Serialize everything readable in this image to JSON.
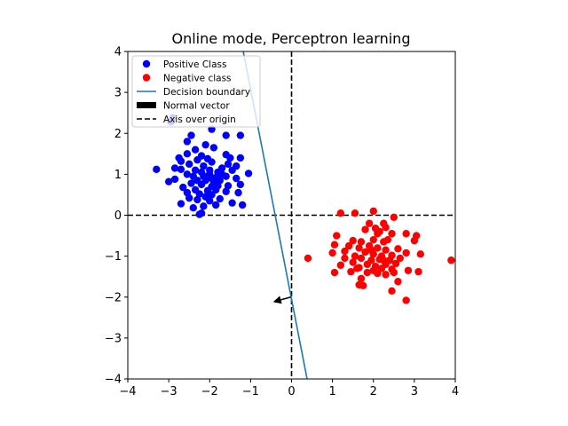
{
  "chart_data": {
    "type": "scatter",
    "title": "Online mode, Perceptron learning",
    "xlabel": "",
    "ylabel": "",
    "xlim": [
      -4,
      4
    ],
    "ylim": [
      -4,
      4
    ],
    "xticks": [
      "−4",
      "−3",
      "−2",
      "−1",
      "0",
      "1",
      "2",
      "3",
      "4"
    ],
    "yticks": [
      "−4",
      "−3",
      "−2",
      "−1",
      "0",
      "1",
      "2",
      "3",
      "4"
    ],
    "grid": false,
    "legend_position": "top-left",
    "series": [
      {
        "name": "Positive Class",
        "kind": "points",
        "color": "#0000ff",
        "points": [
          [
            -2.95,
            2.28
          ],
          [
            -2.9,
            2.38
          ],
          [
            -1.95,
            2.1
          ],
          [
            -2.45,
            1.95
          ],
          [
            -1.6,
            1.95
          ],
          [
            -1.25,
            1.95
          ],
          [
            -2.55,
            1.8
          ],
          [
            -2.1,
            1.72
          ],
          [
            -1.9,
            1.65
          ],
          [
            -2.35,
            1.6
          ],
          [
            -2.55,
            1.5
          ],
          [
            -2.2,
            1.45
          ],
          [
            -1.6,
            1.48
          ],
          [
            -1.5,
            1.4
          ],
          [
            -1.25,
            1.4
          ],
          [
            -2.75,
            1.4
          ],
          [
            -2.7,
            1.32
          ],
          [
            -2.3,
            1.35
          ],
          [
            -2.05,
            1.38
          ],
          [
            -1.95,
            1.3
          ],
          [
            -1.55,
            1.25
          ],
          [
            -2.5,
            1.25
          ],
          [
            -2.15,
            1.2
          ],
          [
            -1.35,
            1.2
          ],
          [
            -1.7,
            1.15
          ],
          [
            -2.85,
            1.15
          ],
          [
            -2.7,
            1.12
          ],
          [
            -2.35,
            1.1
          ],
          [
            -2.0,
            1.1
          ],
          [
            -1.45,
            1.1
          ],
          [
            -3.3,
            1.12
          ],
          [
            -2.2,
            1.05
          ],
          [
            -1.8,
            1.05
          ],
          [
            -1.05,
            1.02
          ],
          [
            -2.55,
            1.0
          ],
          [
            -2.4,
            0.95
          ],
          [
            -2.05,
            0.95
          ],
          [
            -1.85,
            0.92
          ],
          [
            -1.6,
            0.95
          ],
          [
            -1.35,
            0.9
          ],
          [
            -2.85,
            0.88
          ],
          [
            -2.3,
            0.85
          ],
          [
            -2.1,
            0.85
          ],
          [
            -1.9,
            0.8
          ],
          [
            -1.75,
            0.85
          ],
          [
            -3.0,
            0.82
          ],
          [
            -2.45,
            0.78
          ],
          [
            -2.2,
            0.75
          ],
          [
            -1.95,
            0.7
          ],
          [
            -1.8,
            0.72
          ],
          [
            -1.55,
            0.72
          ],
          [
            -1.25,
            0.75
          ],
          [
            -2.65,
            0.68
          ],
          [
            -2.35,
            0.62
          ],
          [
            -2.05,
            0.6
          ],
          [
            -1.85,
            0.62
          ],
          [
            -1.6,
            0.58
          ],
          [
            -2.55,
            0.55
          ],
          [
            -2.25,
            0.52
          ],
          [
            -1.95,
            0.5
          ],
          [
            -1.3,
            0.55
          ],
          [
            -2.1,
            0.45
          ],
          [
            -2.3,
            0.38
          ],
          [
            -1.75,
            0.4
          ],
          [
            -2.5,
            0.42
          ],
          [
            -2.0,
            0.35
          ],
          [
            -1.45,
            0.3
          ],
          [
            -2.7,
            0.28
          ],
          [
            -2.15,
            0.22
          ],
          [
            -1.85,
            0.25
          ],
          [
            -2.4,
            0.18
          ],
          [
            -1.2,
            0.25
          ],
          [
            -2.2,
            0.05
          ],
          [
            -2.25,
            0.02
          ],
          [
            -1.95,
            0.9
          ],
          [
            -2.0,
            1.0
          ],
          [
            -1.7,
            1.0
          ],
          [
            -2.15,
            0.95
          ]
        ]
      },
      {
        "name": "Negative class",
        "kind": "points",
        "color": "#ff0000",
        "points": [
          [
            2.0,
            0.1
          ],
          [
            1.2,
            0.05
          ],
          [
            1.55,
            0.05
          ],
          [
            2.5,
            -0.05
          ],
          [
            2.25,
            -0.2
          ],
          [
            1.9,
            -0.2
          ],
          [
            2.3,
            -0.3
          ],
          [
            2.05,
            -0.32
          ],
          [
            1.8,
            -0.35
          ],
          [
            2.15,
            -0.4
          ],
          [
            2.45,
            -0.45
          ],
          [
            2.8,
            -0.45
          ],
          [
            3.05,
            -0.5
          ],
          [
            1.1,
            -0.5
          ],
          [
            1.5,
            -0.62
          ],
          [
            1.7,
            -0.65
          ],
          [
            2.0,
            -0.6
          ],
          [
            2.25,
            -0.65
          ],
          [
            3.0,
            -0.62
          ],
          [
            1.05,
            -0.72
          ],
          [
            1.4,
            -0.75
          ],
          [
            1.65,
            -0.8
          ],
          [
            1.9,
            -0.75
          ],
          [
            2.1,
            -0.8
          ],
          [
            2.3,
            -0.85
          ],
          [
            2.6,
            -0.82
          ],
          [
            1.3,
            -0.88
          ],
          [
            1.8,
            -0.9
          ],
          [
            1.0,
            -0.92
          ],
          [
            2.8,
            -0.92
          ],
          [
            3.15,
            -0.95
          ],
          [
            1.55,
            -1.0
          ],
          [
            2.0,
            -0.95
          ],
          [
            2.2,
            -1.0
          ],
          [
            2.45,
            -0.98
          ],
          [
            0.4,
            -1.05
          ],
          [
            3.9,
            -1.1
          ],
          [
            1.3,
            -1.05
          ],
          [
            1.7,
            -1.05
          ],
          [
            1.95,
            -1.1
          ],
          [
            2.15,
            -1.08
          ],
          [
            2.4,
            -1.1
          ],
          [
            2.65,
            -1.05
          ],
          [
            1.5,
            -1.15
          ],
          [
            1.85,
            -1.2
          ],
          [
            2.3,
            -1.2
          ],
          [
            2.55,
            -1.18
          ],
          [
            1.2,
            -1.22
          ],
          [
            2.05,
            -1.25
          ],
          [
            1.65,
            -1.28
          ],
          [
            2.2,
            -1.3
          ],
          [
            2.45,
            -1.32
          ],
          [
            1.05,
            -1.4
          ],
          [
            1.45,
            -1.38
          ],
          [
            1.85,
            -1.4
          ],
          [
            2.1,
            -1.42
          ],
          [
            2.3,
            -1.45
          ],
          [
            2.85,
            -1.35
          ],
          [
            3.1,
            -1.38
          ],
          [
            1.7,
            -1.55
          ],
          [
            2.6,
            -1.62
          ],
          [
            1.65,
            -1.7
          ],
          [
            1.75,
            -1.72
          ],
          [
            2.45,
            -1.85
          ],
          [
            2.8,
            -2.08
          ],
          [
            2.0,
            -1.35
          ],
          [
            2.25,
            -1.1
          ],
          [
            1.95,
            -0.85
          ],
          [
            2.35,
            -0.6
          ],
          [
            1.6,
            -1.3
          ],
          [
            2.1,
            -0.45
          ],
          [
            2.5,
            -1.4
          ]
        ]
      },
      {
        "name": "Decision boundary",
        "kind": "line",
        "color": "#1f77b4",
        "points": [
          [
            -1.18,
            4.0
          ],
          [
            0.38,
            -4.0
          ]
        ]
      },
      {
        "name": "Normal vector",
        "kind": "arrow",
        "color": "#000000",
        "points": [
          [
            -0.02,
            -2.0
          ],
          [
            -0.45,
            -2.12
          ]
        ]
      },
      {
        "name": "Axis over origin",
        "kind": "axes-dashed",
        "color": "#000000",
        "points": [
          [
            0,
            0
          ]
        ]
      }
    ]
  }
}
